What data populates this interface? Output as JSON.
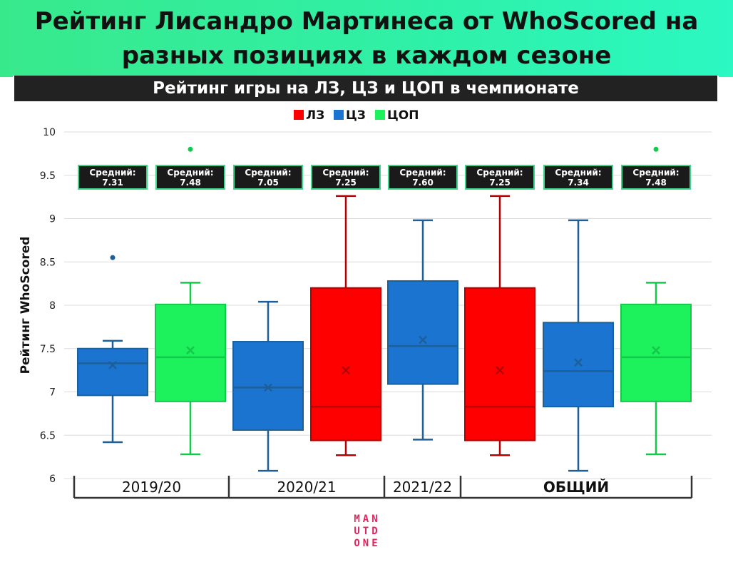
{
  "header": {
    "title": "Рейтинг Лисандро Мартинеса от WhoScored на разных позициях в каждом сезоне",
    "subtitle": "Рейтинг игры на ЛЗ, ЦЗ и ЦОП в чемпионате"
  },
  "logo": {
    "lines": [
      "MAN",
      "UTD",
      "ONE"
    ]
  },
  "colors": {
    "ЛЗ": "#ff0000",
    "ЦЗ": "#1b75d0",
    "ЦОП": "#1df25d",
    "whisker_ЛЗ": "#b30000",
    "whisker_ЦЗ": "#1c5f99",
    "whisker_ЦОП": "#13c94a",
    "label_box": "#1a1a1a",
    "label_border": "#39d98a"
  },
  "chart_data": {
    "type": "box",
    "ylabel": "Рейтинг WhoScored",
    "ylim": [
      6,
      10
    ],
    "yticks": [
      6,
      6.5,
      7,
      7.5,
      8,
      8.5,
      9,
      9.5,
      10
    ],
    "grid": true,
    "legend": {
      "position": "top-center",
      "entries": [
        {
          "name": "ЛЗ",
          "color": "#ff0000"
        },
        {
          "name": "ЦЗ",
          "color": "#1b75d0"
        },
        {
          "name": "ЦОП",
          "color": "#1df25d"
        }
      ]
    },
    "groups": [
      {
        "label": "2019/20",
        "bold": false,
        "box_count": 2
      },
      {
        "label": "2020/21",
        "bold": false,
        "box_count": 2
      },
      {
        "label": "2021/22",
        "bold": false,
        "box_count": 1
      },
      {
        "label": "ОБЩИЙ",
        "bold": true,
        "box_count": 3
      }
    ],
    "mean_label_prefix": "Средний:",
    "boxes": [
      {
        "group": "2019/20",
        "position": "ЦЗ",
        "whisker_low": 6.42,
        "q1": 6.96,
        "median": 7.33,
        "q3": 7.5,
        "whisker_high": 7.59,
        "mean": 7.31,
        "outliers": [
          8.55
        ]
      },
      {
        "group": "2019/20",
        "position": "ЦОП",
        "whisker_low": 6.28,
        "q1": 6.89,
        "median": 7.4,
        "q3": 8.01,
        "whisker_high": 8.26,
        "mean": 7.48,
        "outliers": [
          9.8
        ]
      },
      {
        "group": "2020/21",
        "position": "ЦЗ",
        "whisker_low": 6.09,
        "q1": 6.56,
        "median": 7.05,
        "q3": 7.58,
        "whisker_high": 8.04,
        "mean": 7.05,
        "outliers": []
      },
      {
        "group": "2020/21",
        "position": "ЛЗ",
        "whisker_low": 6.27,
        "q1": 6.44,
        "median": 6.83,
        "q3": 8.2,
        "whisker_high": 9.26,
        "mean": 7.25,
        "outliers": []
      },
      {
        "group": "2021/22",
        "position": "ЦЗ",
        "whisker_low": 6.45,
        "q1": 7.09,
        "median": 7.53,
        "q3": 8.28,
        "whisker_high": 8.98,
        "mean": 7.6,
        "outliers": []
      },
      {
        "group": "ОБЩИЙ",
        "position": "ЛЗ",
        "whisker_low": 6.27,
        "q1": 6.44,
        "median": 6.83,
        "q3": 8.2,
        "whisker_high": 9.26,
        "mean": 7.25,
        "outliers": []
      },
      {
        "group": "ОБЩИЙ",
        "position": "ЦЗ",
        "whisker_low": 6.09,
        "q1": 6.83,
        "median": 7.24,
        "q3": 7.8,
        "whisker_high": 8.98,
        "mean": 7.34,
        "outliers": []
      },
      {
        "group": "ОБЩИЙ",
        "position": "ЦОП",
        "whisker_low": 6.28,
        "q1": 6.89,
        "median": 7.4,
        "q3": 8.01,
        "whisker_high": 8.26,
        "mean": 7.48,
        "outliers": [
          9.8
        ]
      }
    ],
    "mean_labels": [
      "7.31",
      "7.48",
      "7.05",
      "7.25",
      "7.60",
      "7.25",
      "7.34",
      "7.48"
    ]
  }
}
